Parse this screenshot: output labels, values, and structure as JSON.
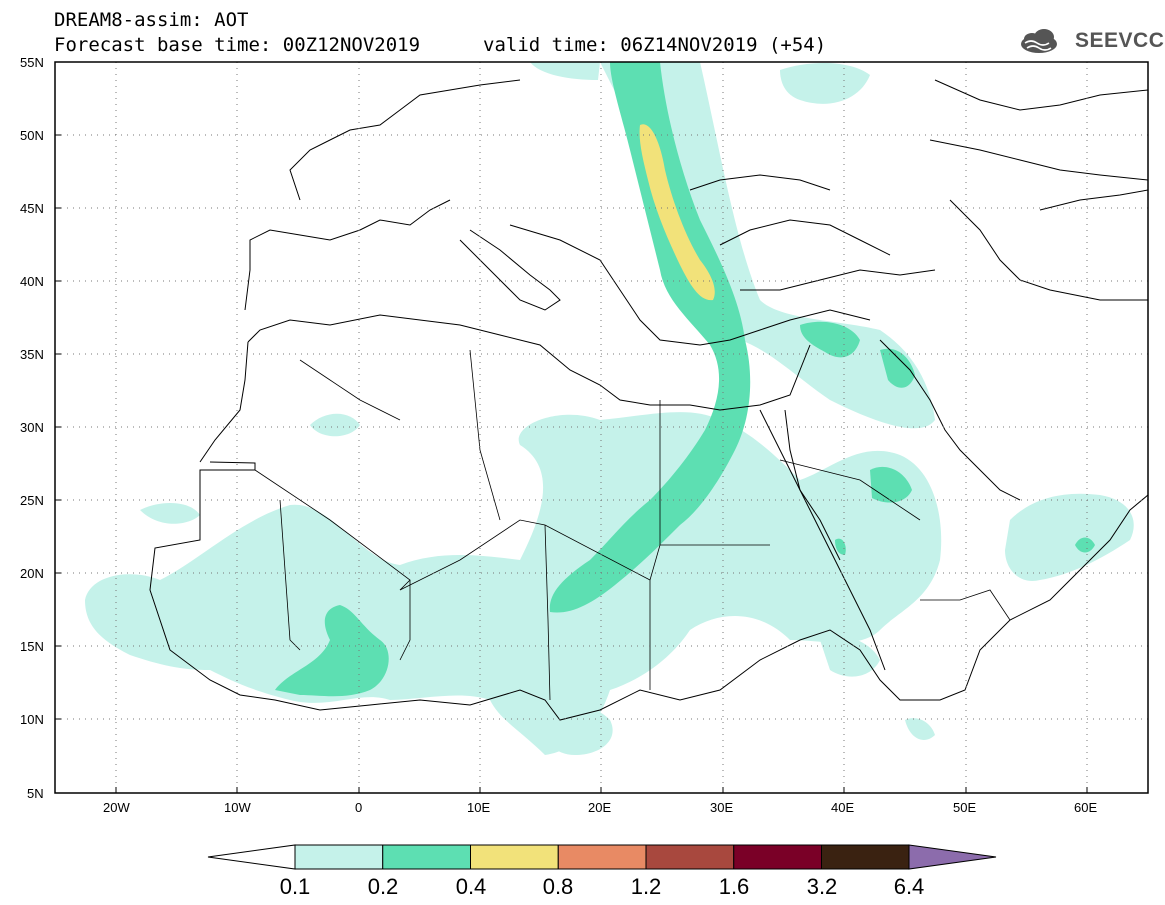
{
  "header": {
    "line1": "DREAM8-assim: AOT",
    "base": "Forecast base time: 00Z12NOV2019",
    "valid": "valid time: 06Z14NOV2019 (+54)",
    "logo_text": "SEEVCCC",
    "logo_icon": "cloud-icon"
  },
  "axes": {
    "lat_labels": [
      "55N",
      "50N",
      "45N",
      "40N",
      "35N",
      "30N",
      "25N",
      "20N",
      "15N",
      "10N",
      "5N"
    ],
    "lon_labels": [
      "20W",
      "10W",
      "0",
      "10E",
      "20E",
      "30E",
      "40E",
      "50E",
      "60E"
    ],
    "lat_range": [
      5,
      55
    ],
    "lon_range": [
      -25,
      65
    ]
  },
  "colorbar": {
    "labels": [
      "0.1",
      "0.2",
      "0.4",
      "0.8",
      "1.2",
      "1.6",
      "3.2",
      "6.4"
    ],
    "colors": [
      "#ffffff",
      "#c5f2ea",
      "#5ddfb2",
      "#f2e27a",
      "#e88a64",
      "#a8483e",
      "#7a0027",
      "#3a2211",
      "#8c6cac"
    ]
  },
  "chart_data": {
    "type": "heatmap",
    "variable": "AOT",
    "levels": [
      0.1,
      0.2,
      0.4,
      0.8,
      1.2,
      1.6,
      3.2,
      6.4
    ],
    "grid": "dotted"
  }
}
